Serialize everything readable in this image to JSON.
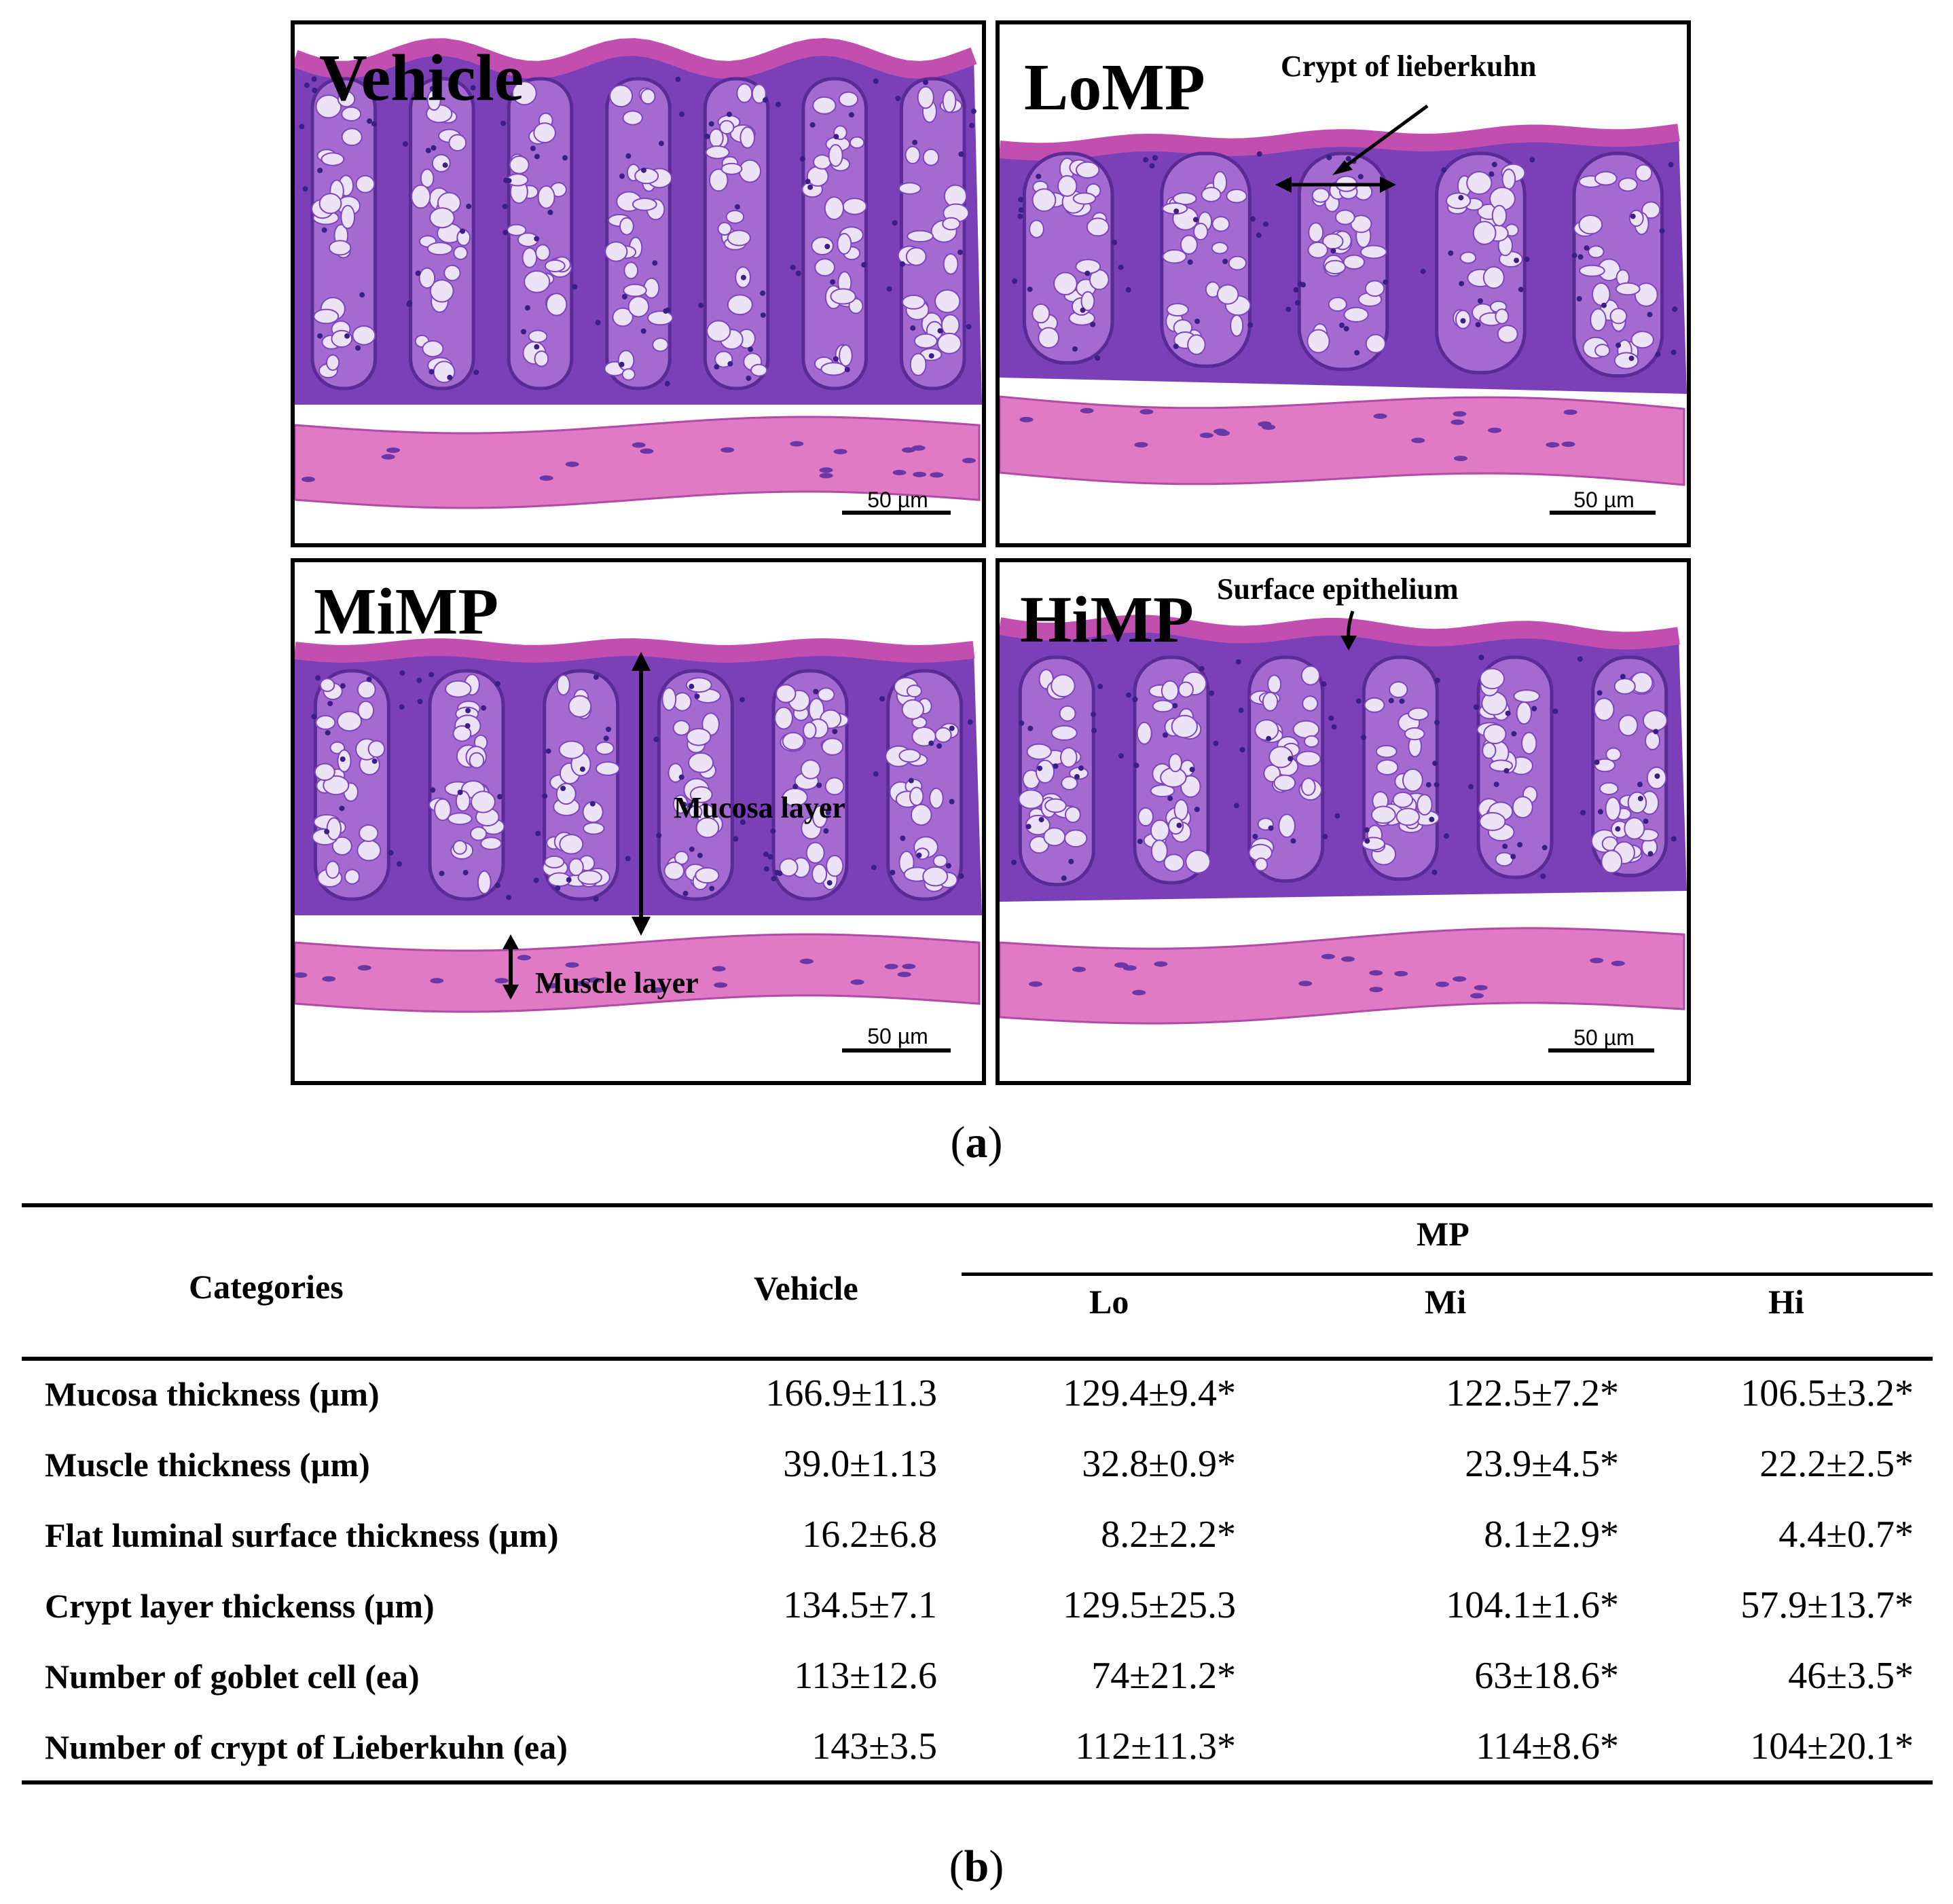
{
  "figure": {
    "panels": [
      {
        "title": "Vehicle",
        "scale": "50 µm",
        "annotations": []
      },
      {
        "title": "LoMP",
        "scale": "50 µm",
        "annotations": [
          "Crypt of lieberkuhn"
        ]
      },
      {
        "title": "MiMP",
        "scale": "50 µm",
        "annotations": [
          "Mucosa layer",
          "Muscle layer"
        ]
      },
      {
        "title": "HiMP",
        "scale": "50 µm",
        "annotations": [
          "Surface epithelium"
        ]
      }
    ],
    "caption_a": "a",
    "caption_b": "b"
  },
  "table": {
    "col_categories": "Categories",
    "col_vehicle": "Vehicle",
    "col_group": "MP",
    "subcols": [
      "Lo",
      "Mi",
      "Hi"
    ],
    "rows": [
      {
        "label": "Mucosa thickness (µm)",
        "values": [
          "166.9±11.3",
          "129.4±9.4*",
          "122.5±7.2*",
          "106.5±3.2*"
        ]
      },
      {
        "label": "Muscle thickness (µm)",
        "values": [
          "39.0±1.13",
          "32.8±0.9*",
          "23.9±4.5*",
          "22.2±2.5*"
        ]
      },
      {
        "label": "Flat luminal surface thickness (µm)",
        "values": [
          "16.2±6.8",
          "8.2±2.2*",
          "8.1±2.9*",
          "4.4±0.7*"
        ]
      },
      {
        "label": "Crypt layer thickenss (µm)",
        "values": [
          "134.5±7.1",
          "129.5±25.3",
          "104.1±1.6*",
          "57.9±13.7*"
        ]
      },
      {
        "label": "Number of goblet cell (ea)",
        "values": [
          "113±12.6",
          "74±21.2*",
          "63±18.6*",
          "46±3.5*"
        ]
      },
      {
        "label": "Number of crypt of Lieberkuhn (ea)",
        "values": [
          "143±3.5",
          "112±11.3*",
          "114±8.6*",
          "104±20.1*"
        ]
      }
    ]
  },
  "colors": {
    "epithelium": "#c24fb0",
    "crypt_stroma": "#7b3fb8",
    "goblet": "#ece4f6",
    "muscle": "#e07ac4",
    "background": "#ffffff"
  }
}
